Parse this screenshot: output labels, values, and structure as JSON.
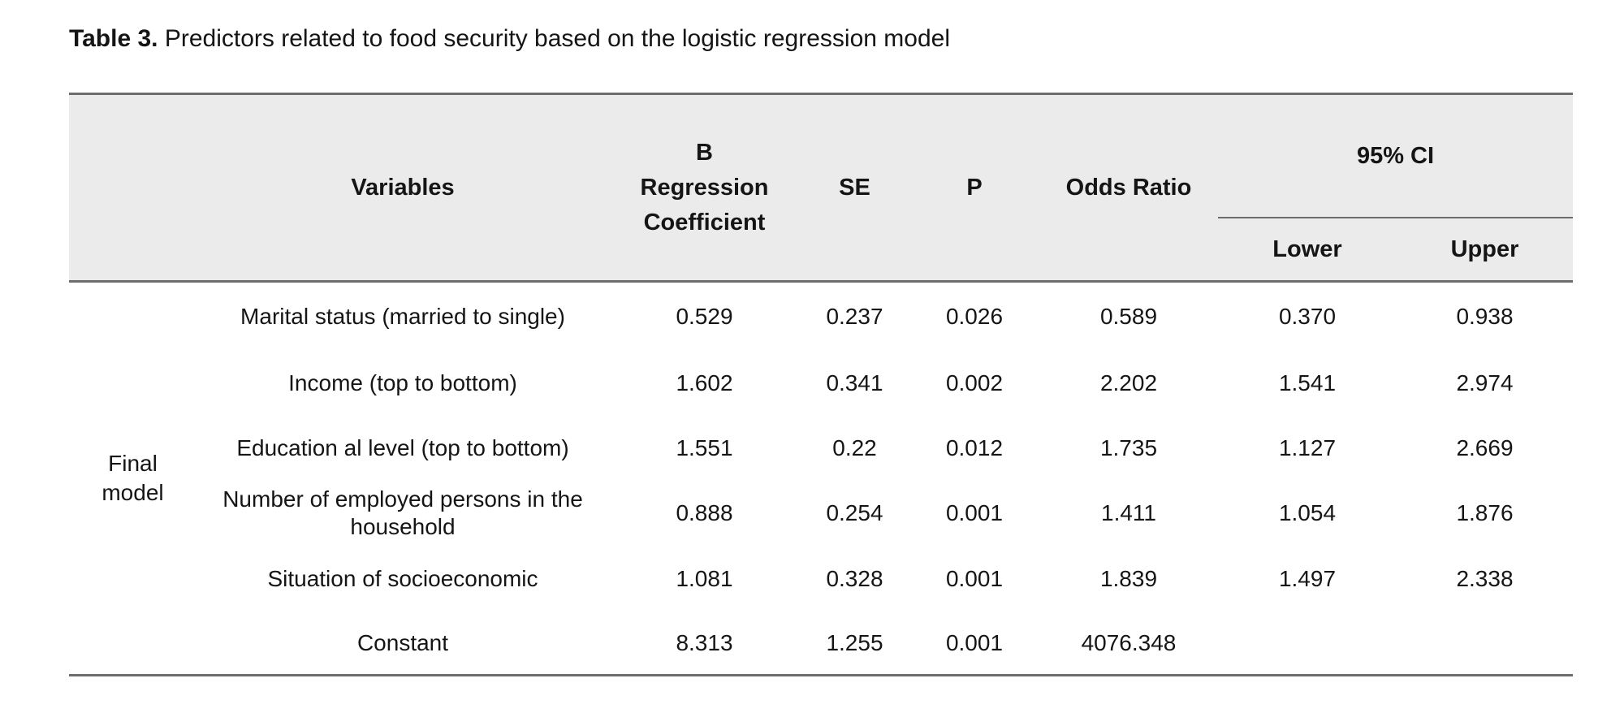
{
  "title": {
    "label": "Table 3.",
    "text": " Predictors related to food security based on the logistic regression model"
  },
  "colors": {
    "header_background": "#ebebeb",
    "rule": "#6d6d6d",
    "text": "#151515"
  },
  "table": {
    "headers": {
      "variables": "Variables",
      "b_coefficient": "B\nRegression\nCoefficient",
      "se": "SE",
      "p": "P",
      "odds_ratio": "Odds Ratio",
      "ci": "95% CI",
      "ci_lower": "Lower",
      "ci_upper": "Upper"
    },
    "row_group_label": "Final\nmodel",
    "rows": [
      {
        "variable": "Marital status (married to single)",
        "b": "0.529",
        "se": "0.237",
        "p": "0.026",
        "odds_ratio": "0.589",
        "ci_lower": "0.370",
        "ci_upper": "0.938"
      },
      {
        "variable": "Income (top to bottom)",
        "b": "1.602",
        "se": "0.341",
        "p": "0.002",
        "odds_ratio": "2.202",
        "ci_lower": "1.541",
        "ci_upper": "2.974"
      },
      {
        "variable": "Education al level (top to bottom)",
        "b": "1.551",
        "se": "0.22",
        "p": "0.012",
        "odds_ratio": "1.735",
        "ci_lower": "1.127",
        "ci_upper": "2.669"
      },
      {
        "variable": "Number of employed persons in the household",
        "b": "0.888",
        "se": "0.254",
        "p": "0.001",
        "odds_ratio": "1.411",
        "ci_lower": "1.054",
        "ci_upper": "1.876"
      },
      {
        "variable": "Situation of socioeconomic",
        "b": "1.081",
        "se": "0.328",
        "p": "0.001",
        "odds_ratio": "1.839",
        "ci_lower": "1.497",
        "ci_upper": "2.338"
      },
      {
        "variable": "Constant",
        "b": "8.313",
        "se": "1.255",
        "p": "0.001",
        "odds_ratio": "4076.348",
        "ci_lower": "",
        "ci_upper": ""
      }
    ]
  }
}
